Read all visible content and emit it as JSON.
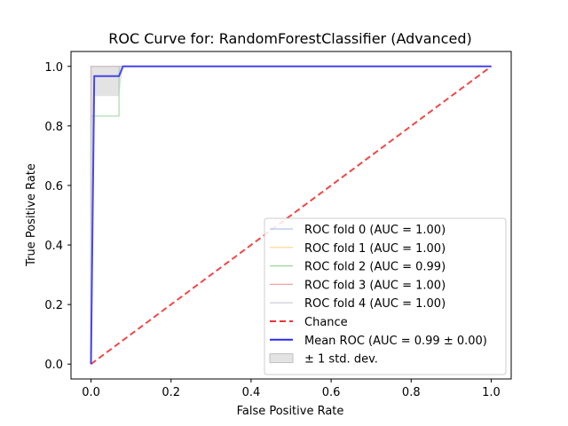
{
  "chart_data": {
    "type": "line",
    "title": "ROC Curve for: RandomForestClassifier (Advanced)",
    "xlabel": "False Positive Rate",
    "ylabel": "True Positive Rate",
    "xlim": [
      -0.05,
      1.05
    ],
    "ylim": [
      -0.05,
      1.05
    ],
    "xticks": [
      "0.0",
      "0.2",
      "0.4",
      "0.6",
      "0.8",
      "1.0"
    ],
    "yticks": [
      "0.0",
      "0.2",
      "0.4",
      "0.6",
      "0.8",
      "1.0"
    ],
    "grid": false,
    "legend_position": "lower-right",
    "series": [
      {
        "name": "ROC fold 0 (AUC = 1.00)",
        "color": "#aec7e8",
        "style": "solid",
        "x": [
          0,
          0,
          1
        ],
        "y": [
          0,
          1,
          1
        ]
      },
      {
        "name": "ROC fold 1 (AUC = 1.00)",
        "color": "#ffd08a",
        "style": "solid",
        "x": [
          0,
          0,
          1
        ],
        "y": [
          0,
          1,
          1
        ]
      },
      {
        "name": "ROC fold 2 (AUC = 0.99)",
        "color": "#9ed49e",
        "style": "solid",
        "x": [
          0,
          0,
          0.07,
          0.07,
          1
        ],
        "y": [
          0,
          0.833,
          0.833,
          1,
          1
        ]
      },
      {
        "name": "ROC fold 3 (AUC = 1.00)",
        "color": "#f0a0a0",
        "style": "solid",
        "x": [
          0,
          0,
          1
        ],
        "y": [
          0,
          1,
          1
        ]
      },
      {
        "name": "ROC fold 4 (AUC = 1.00)",
        "color": "#c8c8d8",
        "style": "solid",
        "x": [
          0,
          0,
          1
        ],
        "y": [
          0,
          1,
          1
        ]
      },
      {
        "name": "Chance",
        "color": "#ee3333",
        "style": "dashed",
        "x": [
          0,
          1
        ],
        "y": [
          0,
          1
        ]
      },
      {
        "name": "Mean ROC (AUC = 0.99 ± 0.00)",
        "color": "#2a2aee",
        "style": "solid",
        "x": [
          0,
          0.008,
          0.07,
          0.08,
          1
        ],
        "y": [
          0,
          0.967,
          0.967,
          1,
          1
        ]
      }
    ],
    "band": {
      "name": "± 1 std. dev.",
      "color": "#c0c0c0",
      "x": [
        0,
        0.01,
        0.02,
        0.03,
        0.04,
        0.05,
        0.06,
        0.07,
        0.08,
        1
      ],
      "upper": [
        1,
        1,
        1,
        1,
        1,
        1,
        1,
        1,
        1,
        1
      ],
      "lower": [
        0,
        0.9,
        0.9,
        0.9,
        0.9,
        0.9,
        0.9,
        0.9,
        1,
        1
      ]
    }
  }
}
